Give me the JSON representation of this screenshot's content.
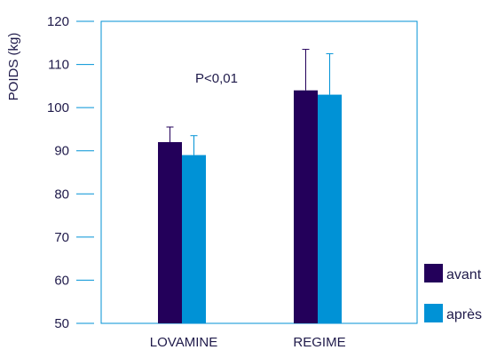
{
  "chart_data": {
    "type": "bar",
    "title": "",
    "xlabel": "",
    "ylabel": "POIDS (kg)",
    "ylim": [
      50,
      120
    ],
    "yticks": [
      50,
      60,
      70,
      80,
      90,
      100,
      110,
      120
    ],
    "categories": [
      "LOVAMINE",
      "REGIME"
    ],
    "series": [
      {
        "name": "avant",
        "color": "#23005a",
        "values": [
          92,
          104
        ],
        "errors": [
          3.5,
          9.5
        ]
      },
      {
        "name": "après",
        "color": "#0092d6",
        "values": [
          89,
          103
        ],
        "errors": [
          4.5,
          9.5
        ]
      }
    ],
    "annotations": [
      {
        "text": "P<0,01"
      }
    ],
    "grid": false,
    "legend_position": "bottom-right",
    "axis_color": "#0092d6"
  }
}
